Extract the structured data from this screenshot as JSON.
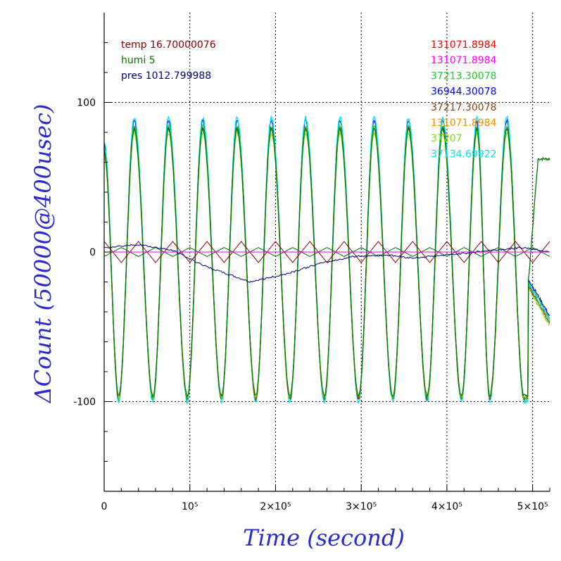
{
  "chart_data": {
    "type": "line",
    "xlabel": "Time (second)",
    "ylabel": "ΔCount (50000@400usec)",
    "xlim": [
      0,
      520000
    ],
    "ylim": [
      -160,
      160
    ],
    "grid": true,
    "grid_style": "dotted",
    "x_ticks": [
      {
        "value": 0,
        "label": "0"
      },
      {
        "value": 100000,
        "label": "10⁵"
      },
      {
        "value": 200000,
        "label": "2×10⁵"
      },
      {
        "value": 300000,
        "label": "3×10⁵"
      },
      {
        "value": 400000,
        "label": "4×10⁵"
      },
      {
        "value": 500000,
        "label": "5×10⁵"
      }
    ],
    "y_ticks": [
      {
        "value": 100,
        "label": "100"
      },
      {
        "value": 0,
        "label": "0"
      },
      {
        "value": -100,
        "label": "-100"
      }
    ],
    "legend_left": [
      {
        "text": "temp 16.70000076",
        "color": "#8b0000"
      },
      {
        "text": "humi 5",
        "color": "#007700"
      },
      {
        "text": "pres 1012.799988",
        "color": "#000080"
      }
    ],
    "legend_right": [
      {
        "text": "131071.8984",
        "color": "#ff0000"
      },
      {
        "text": "131071.8984",
        "color": "#ff00ff"
      },
      {
        "text": "37213.30078",
        "color": "#22cc22"
      },
      {
        "text": "36944.30078",
        "color": "#0000ff"
      },
      {
        "text": "37217.30078",
        "color": "#8b4513"
      },
      {
        "text": "131071.8984",
        "color": "#ff8c00"
      },
      {
        "text": "37207",
        "color": "#7fdd00"
      },
      {
        "text": "37134.69922",
        "color": "#00e5ee"
      }
    ],
    "oscillation": {
      "period_seconds": 40000,
      "peak_times": [
        35000,
        75000,
        115000,
        155000,
        195000,
        235000,
        275000,
        315000,
        355000,
        395000,
        435000,
        470000
      ],
      "trough_times": [
        17000,
        57000,
        97000,
        137000,
        177000,
        217000,
        257000,
        297000,
        337000,
        377000,
        417000,
        450000,
        490000
      ],
      "peak_value": 88,
      "trough_value": -98,
      "end_time": 495000
    },
    "series": [
      {
        "color": "#0000ff",
        "amplitude_scale": 1.0,
        "offset": 0,
        "noise": 1.5
      },
      {
        "color": "#22cc22",
        "amplitude_scale": 0.98,
        "offset": -2,
        "noise": 2
      },
      {
        "color": "#00e5ee",
        "amplitude_scale": 1.02,
        "offset": 0,
        "noise": 3
      },
      {
        "color": "#8b4513",
        "amplitude_scale": 0.97,
        "offset": -3,
        "noise": 2.5
      },
      {
        "color": "#7fdd00",
        "amplitude_scale": 0.95,
        "offset": -4,
        "noise": 2
      },
      {
        "color": "#007700",
        "amplitude_scale": 0.96,
        "offset": -2,
        "noise": 2,
        "tail_to": 62
      }
    ],
    "sensor_lines": [
      {
        "name": "temp",
        "color": "#8b0000",
        "shape": "triangle",
        "amplitude": 7,
        "phase": 0.5
      },
      {
        "name": "humi",
        "color": "#007700",
        "shape": "triangle",
        "amplitude": 3,
        "phase": 0
      },
      {
        "name": "pres",
        "color": "#000080",
        "shape": "drift",
        "points": [
          [
            0,
            3
          ],
          [
            40000,
            5
          ],
          [
            80000,
            1
          ],
          [
            120000,
            -10
          ],
          [
            170000,
            -20
          ],
          [
            210000,
            -15
          ],
          [
            250000,
            -8
          ],
          [
            290000,
            -3
          ],
          [
            330000,
            -2
          ],
          [
            360000,
            -4
          ],
          [
            400000,
            -2
          ],
          [
            450000,
            1
          ],
          [
            490000,
            3
          ],
          [
            520000,
            0
          ]
        ]
      },
      {
        "name": "pink",
        "color": "#ff00ff",
        "shape": "flat",
        "value": 0
      }
    ]
  }
}
